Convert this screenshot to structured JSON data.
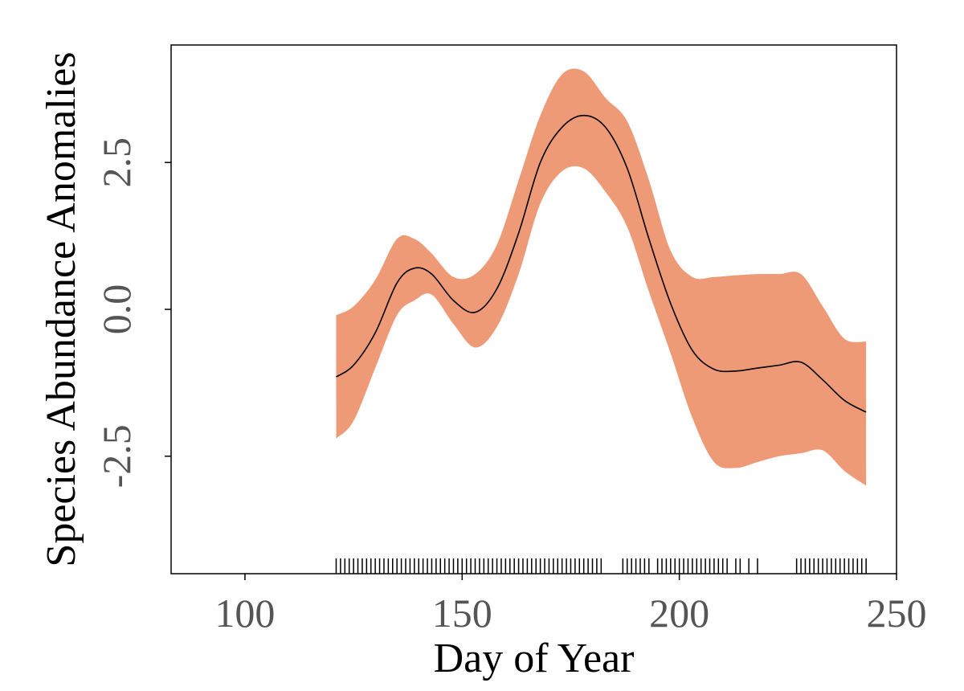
{
  "chart_data": {
    "type": "line",
    "title": "",
    "xlabel": "Day of Year",
    "ylabel": "Species Abundance Anomalies",
    "xlim": [
      83,
      250
    ],
    "ylim": [
      -4.5,
      4.5
    ],
    "x_ticks": [
      100,
      150,
      200,
      250
    ],
    "x_tick_labels": [
      "100",
      "150",
      "200",
      "250"
    ],
    "y_ticks": [
      -2.5,
      0.0,
      2.5
    ],
    "y_tick_labels": [
      "-2.5",
      "0.0",
      "2.5"
    ],
    "grid": false,
    "legend": "none",
    "colors": {
      "ribbon": "#EE9A77",
      "line": "#000000"
    },
    "series": [
      {
        "x": [
          121,
          125,
          130,
          135,
          139,
          143,
          148,
          153,
          158,
          163,
          168,
          173,
          178,
          183,
          188,
          193,
          198,
          203,
          208,
          213,
          218,
          223,
          228,
          233,
          238,
          243
        ],
        "y": [
          -1.15,
          -0.95,
          -0.4,
          0.45,
          0.7,
          0.6,
          0.15,
          -0.05,
          0.35,
          1.3,
          2.5,
          3.1,
          3.3,
          3.1,
          2.4,
          1.2,
          0.1,
          -0.7,
          -1.02,
          -1.05,
          -1.0,
          -0.95,
          -0.9,
          -1.2,
          -1.55,
          -1.75
        ],
        "upper": [
          -0.1,
          0.05,
          0.5,
          1.2,
          1.2,
          0.95,
          0.55,
          0.6,
          1.1,
          2.2,
          3.3,
          4.0,
          4.05,
          3.6,
          3.2,
          2.2,
          1.0,
          0.55,
          0.55,
          0.58,
          0.6,
          0.6,
          0.6,
          0.05,
          -0.5,
          -0.55
        ],
        "lower": [
          -2.2,
          -1.9,
          -1.0,
          -0.1,
          0.15,
          0.25,
          -0.25,
          -0.65,
          -0.3,
          0.6,
          1.8,
          2.35,
          2.4,
          2.0,
          1.4,
          0.3,
          -0.75,
          -1.85,
          -2.6,
          -2.7,
          -2.6,
          -2.5,
          -2.45,
          -2.4,
          -2.75,
          -3.0
        ]
      }
    ],
    "rug_x": [
      121,
      122,
      123,
      124,
      125,
      126,
      127,
      128,
      129,
      130,
      131,
      132,
      133,
      134,
      135,
      136,
      137,
      138,
      139,
      140,
      141,
      142,
      143,
      144,
      145,
      146,
      147,
      148,
      149,
      150,
      151,
      152,
      153,
      154,
      155,
      156,
      157,
      158,
      159,
      160,
      161,
      162,
      163,
      164,
      165,
      166,
      167,
      168,
      169,
      170,
      171,
      172,
      173,
      174,
      175,
      176,
      177,
      178,
      179,
      180,
      181,
      182,
      187,
      188,
      189,
      190,
      191,
      192,
      193,
      195,
      196,
      197,
      198,
      199,
      200,
      201,
      202,
      203,
      204,
      205,
      206,
      207,
      208,
      209,
      210,
      211,
      213,
      214,
      216,
      218,
      227,
      228,
      229,
      230,
      231,
      232,
      233,
      234,
      235,
      236,
      237,
      238,
      239,
      240,
      241,
      242,
      243
    ]
  }
}
